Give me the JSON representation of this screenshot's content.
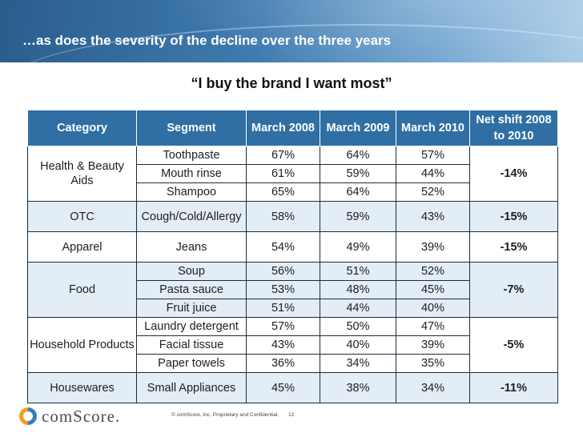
{
  "slide": {
    "title": "…as does the severity of the decline over the three years",
    "subtitle": "“I buy the brand I want most”"
  },
  "table": {
    "headers": [
      "Category",
      "Segment",
      "March 2008",
      "March 2009",
      "March 2010",
      "Net shift 2008 to 2010"
    ],
    "groups": [
      {
        "category": "Health & Beauty Aids",
        "net_shift": "-14%",
        "shaded": false,
        "rows": [
          {
            "segment": "Toothpaste",
            "m2008": "67%",
            "m2009": "64%",
            "m2010": "57%"
          },
          {
            "segment": "Mouth rinse",
            "m2008": "61%",
            "m2009": "59%",
            "m2010": "44%"
          },
          {
            "segment": "Shampoo",
            "m2008": "65%",
            "m2009": "64%",
            "m2010": "52%"
          }
        ]
      },
      {
        "category": "OTC",
        "net_shift": "-15%",
        "shaded": true,
        "rows": [
          {
            "segment": "Cough/Cold/Allergy",
            "m2008": "58%",
            "m2009": "59%",
            "m2010": "43%"
          }
        ]
      },
      {
        "category": "Apparel",
        "net_shift": "-15%",
        "shaded": false,
        "rows": [
          {
            "segment": "Jeans",
            "m2008": "54%",
            "m2009": "49%",
            "m2010": "39%"
          }
        ]
      },
      {
        "category": "Food",
        "net_shift": "-7%",
        "shaded": true,
        "rows": [
          {
            "segment": "Soup",
            "m2008": "56%",
            "m2009": "51%",
            "m2010": "52%"
          },
          {
            "segment": "Pasta sauce",
            "m2008": "53%",
            "m2009": "48%",
            "m2010": "45%"
          },
          {
            "segment": "Fruit juice",
            "m2008": "51%",
            "m2009": "44%",
            "m2010": "40%"
          }
        ]
      },
      {
        "category": "Household Products",
        "net_shift": "-5%",
        "shaded": false,
        "rows": [
          {
            "segment": "Laundry detergent",
            "m2008": "57%",
            "m2009": "50%",
            "m2010": "47%"
          },
          {
            "segment": "Facial tissue",
            "m2008": "43%",
            "m2009": "40%",
            "m2010": "39%"
          },
          {
            "segment": "Paper towels",
            "m2008": "36%",
            "m2009": "34%",
            "m2010": "35%"
          }
        ]
      },
      {
        "category": "Housewares",
        "net_shift": "-11%",
        "shaded": true,
        "rows": [
          {
            "segment": "Small Appliances",
            "m2008": "45%",
            "m2009": "38%",
            "m2010": "34%"
          }
        ]
      }
    ]
  },
  "footer": {
    "logo_text": "comScore.",
    "note": "© comScore, Inc.  Proprietary and Confidential.",
    "page_number": "12"
  },
  "colors": {
    "header_blue": "#2f6fa3",
    "shade": "#e3edf6",
    "logo_orange": "#f39c1f",
    "logo_blue": "#2f7fc1"
  }
}
